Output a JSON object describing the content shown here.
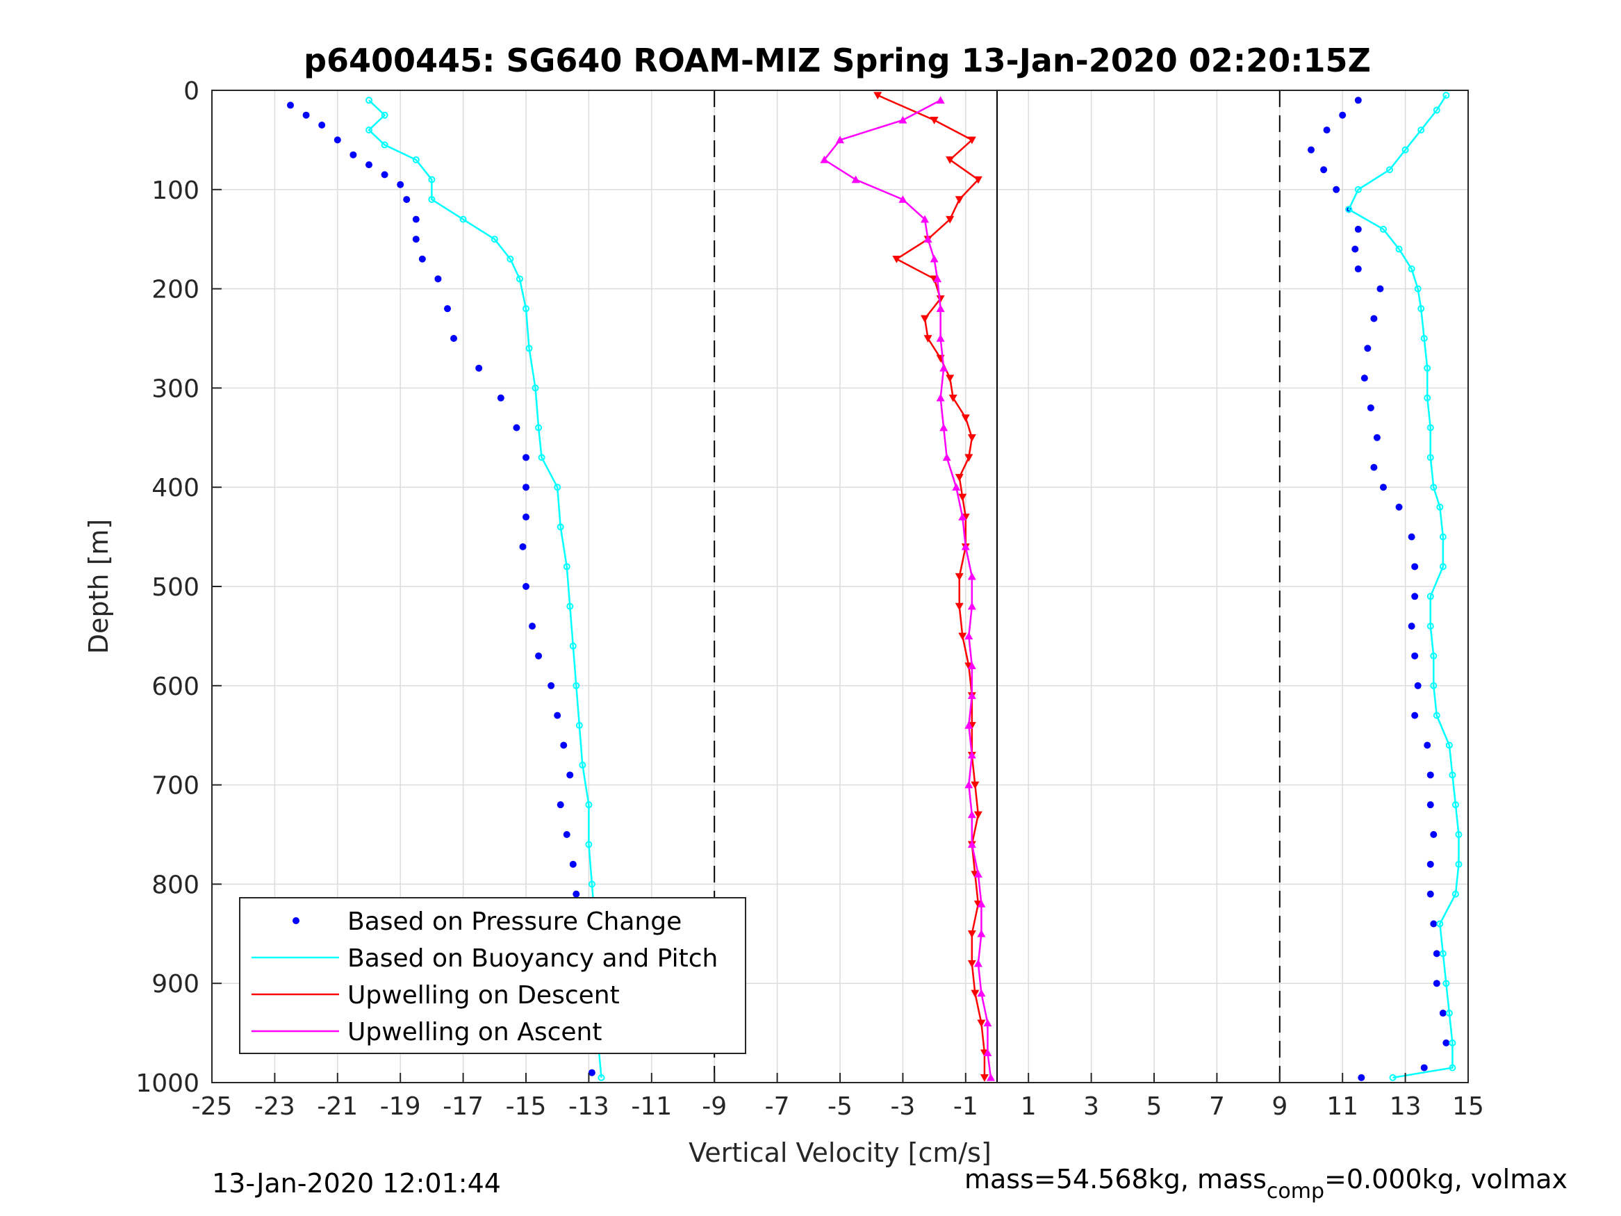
{
  "chart_data": {
    "type": "scatter",
    "title": "p6400445: SG640 ROAM-MIZ Spring 13-Jan-2020 02:20:15Z",
    "xlabel": "Vertical Velocity [cm/s]",
    "ylabel": "Depth [m]",
    "xlim": [
      -25,
      15
    ],
    "ylim": [
      0,
      1000
    ],
    "y_reversed": true,
    "grid": true,
    "x_ticks": [
      "-25",
      "-23",
      "-21",
      "-19",
      "-17",
      "-15",
      "-13",
      "-11",
      "-9",
      "-7",
      "-5",
      "-3",
      "-1",
      "1",
      "3",
      "5",
      "7",
      "9",
      "11",
      "13",
      "15"
    ],
    "y_ticks": [
      "0",
      "100",
      "200",
      "300",
      "400",
      "500",
      "600",
      "700",
      "800",
      "900",
      "1000"
    ],
    "reference_lines": {
      "dashed_x": [
        -9,
        9
      ],
      "solid_x": [
        0
      ]
    },
    "legend_position": "bottom-left",
    "legend": [
      {
        "label": "Based on Pressure Change",
        "color": "#0000ff",
        "style": "dot"
      },
      {
        "label": "Based on Buoyancy and Pitch",
        "color": "#00ffff",
        "style": "line"
      },
      {
        "label": "Upwelling on Descent",
        "color": "#ff0000",
        "style": "line"
      },
      {
        "label": "Upwelling on Ascent",
        "color": "#ff00ff",
        "style": "line"
      }
    ],
    "series": [
      {
        "name": "Based on Pressure Change",
        "color": "#0000ff",
        "segment": "descent",
        "points": [
          [
            -22.5,
            15
          ],
          [
            -22,
            25
          ],
          [
            -21.5,
            35
          ],
          [
            -21,
            50
          ],
          [
            -20.5,
            65
          ],
          [
            -20,
            75
          ],
          [
            -19.5,
            85
          ],
          [
            -19,
            95
          ],
          [
            -18.8,
            110
          ],
          [
            -18.5,
            130
          ],
          [
            -18.5,
            150
          ],
          [
            -18.3,
            170
          ],
          [
            -17.8,
            190
          ],
          [
            -17.5,
            220
          ],
          [
            -17.3,
            250
          ],
          [
            -16.5,
            280
          ],
          [
            -15.8,
            310
          ],
          [
            -15.3,
            340
          ],
          [
            -15.0,
            370
          ],
          [
            -15.0,
            400
          ],
          [
            -15.0,
            430
          ],
          [
            -15.1,
            460
          ],
          [
            -15.0,
            500
          ],
          [
            -14.8,
            540
          ],
          [
            -14.6,
            570
          ],
          [
            -14.2,
            600
          ],
          [
            -14.0,
            630
          ],
          [
            -13.8,
            660
          ],
          [
            -13.6,
            690
          ],
          [
            -13.9,
            720
          ],
          [
            -13.7,
            750
          ],
          [
            -13.5,
            780
          ],
          [
            -13.4,
            810
          ],
          [
            -13.3,
            840
          ],
          [
            -13.2,
            870
          ],
          [
            -13.1,
            900
          ],
          [
            -13.0,
            930
          ],
          [
            -13.0,
            960
          ],
          [
            -12.9,
            990
          ]
        ]
      },
      {
        "name": "Based on Buoyancy and Pitch",
        "color": "#00ffff",
        "segment": "descent",
        "points": [
          [
            -20,
            10
          ],
          [
            -19.5,
            25
          ],
          [
            -20,
            40
          ],
          [
            -19.5,
            55
          ],
          [
            -18.5,
            70
          ],
          [
            -18,
            90
          ],
          [
            -18,
            110
          ],
          [
            -17,
            130
          ],
          [
            -16,
            150
          ],
          [
            -15.5,
            170
          ],
          [
            -15.2,
            190
          ],
          [
            -15.0,
            220
          ],
          [
            -14.9,
            260
          ],
          [
            -14.7,
            300
          ],
          [
            -14.6,
            340
          ],
          [
            -14.5,
            370
          ],
          [
            -14.0,
            400
          ],
          [
            -13.9,
            440
          ],
          [
            -13.7,
            480
          ],
          [
            -13.6,
            520
          ],
          [
            -13.5,
            560
          ],
          [
            -13.4,
            600
          ],
          [
            -13.3,
            640
          ],
          [
            -13.2,
            680
          ],
          [
            -13.0,
            720
          ],
          [
            -13.0,
            760
          ],
          [
            -12.9,
            800
          ],
          [
            -12.8,
            840
          ],
          [
            -12.8,
            880
          ],
          [
            -12.7,
            920
          ],
          [
            -12.7,
            960
          ],
          [
            -12.6,
            995
          ]
        ]
      },
      {
        "name": "Based on Pressure Change",
        "color": "#0000ff",
        "segment": "ascent",
        "points": [
          [
            11.6,
            995
          ],
          [
            13.6,
            985
          ],
          [
            14.3,
            960
          ],
          [
            14.2,
            930
          ],
          [
            14.0,
            900
          ],
          [
            14.0,
            870
          ],
          [
            13.9,
            840
          ],
          [
            13.8,
            810
          ],
          [
            13.8,
            780
          ],
          [
            13.9,
            750
          ],
          [
            13.8,
            720
          ],
          [
            13.8,
            690
          ],
          [
            13.7,
            660
          ],
          [
            13.3,
            630
          ],
          [
            13.4,
            600
          ],
          [
            13.3,
            570
          ],
          [
            13.2,
            540
          ],
          [
            13.3,
            510
          ],
          [
            13.3,
            480
          ],
          [
            13.2,
            450
          ],
          [
            12.8,
            420
          ],
          [
            12.3,
            400
          ],
          [
            12.0,
            380
          ],
          [
            12.1,
            350
          ],
          [
            11.9,
            320
          ],
          [
            11.7,
            290
          ],
          [
            11.8,
            260
          ],
          [
            12.0,
            230
          ],
          [
            12.2,
            200
          ],
          [
            11.5,
            180
          ],
          [
            11.4,
            160
          ],
          [
            11.5,
            140
          ],
          [
            11.2,
            120
          ],
          [
            10.8,
            100
          ],
          [
            10.4,
            80
          ],
          [
            10.0,
            60
          ],
          [
            10.5,
            40
          ],
          [
            11.0,
            25
          ],
          [
            11.5,
            10
          ]
        ]
      },
      {
        "name": "Based on Buoyancy and Pitch",
        "color": "#00ffff",
        "segment": "ascent",
        "points": [
          [
            12.6,
            995
          ],
          [
            14.5,
            985
          ],
          [
            14.5,
            960
          ],
          [
            14.4,
            930
          ],
          [
            14.3,
            900
          ],
          [
            14.2,
            870
          ],
          [
            14.1,
            840
          ],
          [
            14.6,
            810
          ],
          [
            14.7,
            780
          ],
          [
            14.7,
            750
          ],
          [
            14.6,
            720
          ],
          [
            14.5,
            690
          ],
          [
            14.4,
            660
          ],
          [
            14.0,
            630
          ],
          [
            13.9,
            600
          ],
          [
            13.9,
            570
          ],
          [
            13.8,
            540
          ],
          [
            13.8,
            510
          ],
          [
            14.2,
            480
          ],
          [
            14.2,
            450
          ],
          [
            14.1,
            420
          ],
          [
            13.9,
            400
          ],
          [
            13.8,
            370
          ],
          [
            13.8,
            340
          ],
          [
            13.7,
            310
          ],
          [
            13.7,
            280
          ],
          [
            13.6,
            250
          ],
          [
            13.5,
            220
          ],
          [
            13.4,
            200
          ],
          [
            13.2,
            180
          ],
          [
            12.8,
            160
          ],
          [
            12.3,
            140
          ],
          [
            11.2,
            120
          ],
          [
            11.5,
            100
          ],
          [
            12.5,
            80
          ],
          [
            13.0,
            60
          ],
          [
            13.5,
            40
          ],
          [
            14.0,
            20
          ],
          [
            14.3,
            5
          ]
        ]
      },
      {
        "name": "Upwelling on Descent",
        "color": "#ff0000",
        "marker": "triangle-down",
        "points": [
          [
            -3.8,
            5
          ],
          [
            -2,
            30
          ],
          [
            -0.8,
            50
          ],
          [
            -1.5,
            70
          ],
          [
            -0.6,
            90
          ],
          [
            -1.2,
            110
          ],
          [
            -1.5,
            130
          ],
          [
            -2.2,
            150
          ],
          [
            -3.2,
            170
          ],
          [
            -2.0,
            190
          ],
          [
            -1.8,
            210
          ],
          [
            -2.3,
            230
          ],
          [
            -2.2,
            250
          ],
          [
            -1.8,
            270
          ],
          [
            -1.5,
            290
          ],
          [
            -1.4,
            310
          ],
          [
            -1.0,
            330
          ],
          [
            -0.8,
            350
          ],
          [
            -0.9,
            370
          ],
          [
            -1.2,
            390
          ],
          [
            -1.1,
            410
          ],
          [
            -1.0,
            430
          ],
          [
            -1.0,
            460
          ],
          [
            -1.2,
            490
          ],
          [
            -1.2,
            520
          ],
          [
            -1.1,
            550
          ],
          [
            -0.9,
            580
          ],
          [
            -0.8,
            610
          ],
          [
            -0.8,
            640
          ],
          [
            -0.8,
            670
          ],
          [
            -0.7,
            700
          ],
          [
            -0.6,
            730
          ],
          [
            -0.8,
            760
          ],
          [
            -0.7,
            790
          ],
          [
            -0.6,
            820
          ],
          [
            -0.8,
            850
          ],
          [
            -0.8,
            880
          ],
          [
            -0.7,
            910
          ],
          [
            -0.5,
            940
          ],
          [
            -0.4,
            970
          ],
          [
            -0.4,
            995
          ]
        ]
      },
      {
        "name": "Upwelling on Ascent",
        "color": "#ff00ff",
        "marker": "triangle-up",
        "points": [
          [
            -0.2,
            995
          ],
          [
            -0.3,
            970
          ],
          [
            -0.3,
            940
          ],
          [
            -0.5,
            910
          ],
          [
            -0.6,
            880
          ],
          [
            -0.5,
            850
          ],
          [
            -0.5,
            820
          ],
          [
            -0.6,
            790
          ],
          [
            -0.8,
            760
          ],
          [
            -0.8,
            730
          ],
          [
            -0.9,
            700
          ],
          [
            -0.8,
            670
          ],
          [
            -0.9,
            640
          ],
          [
            -0.8,
            610
          ],
          [
            -0.8,
            580
          ],
          [
            -0.9,
            550
          ],
          [
            -0.8,
            520
          ],
          [
            -0.8,
            490
          ],
          [
            -1.0,
            460
          ],
          [
            -1.1,
            430
          ],
          [
            -1.3,
            400
          ],
          [
            -1.6,
            370
          ],
          [
            -1.7,
            340
          ],
          [
            -1.8,
            310
          ],
          [
            -1.7,
            280
          ],
          [
            -1.8,
            250
          ],
          [
            -1.8,
            220
          ],
          [
            -1.9,
            190
          ],
          [
            -2.0,
            170
          ],
          [
            -2.2,
            150
          ],
          [
            -2.3,
            130
          ],
          [
            -3.0,
            110
          ],
          [
            -4.5,
            90
          ],
          [
            -5.5,
            70
          ],
          [
            -5.0,
            50
          ],
          [
            -3.0,
            30
          ],
          [
            -1.8,
            10
          ]
        ]
      }
    ],
    "footer_left": "13-Jan-2020 12:01:44",
    "footer_right": {
      "prefix": "mass=54.568kg, mass",
      "subscript": "comp",
      "suffix": "=0.000kg, volmax"
    }
  }
}
